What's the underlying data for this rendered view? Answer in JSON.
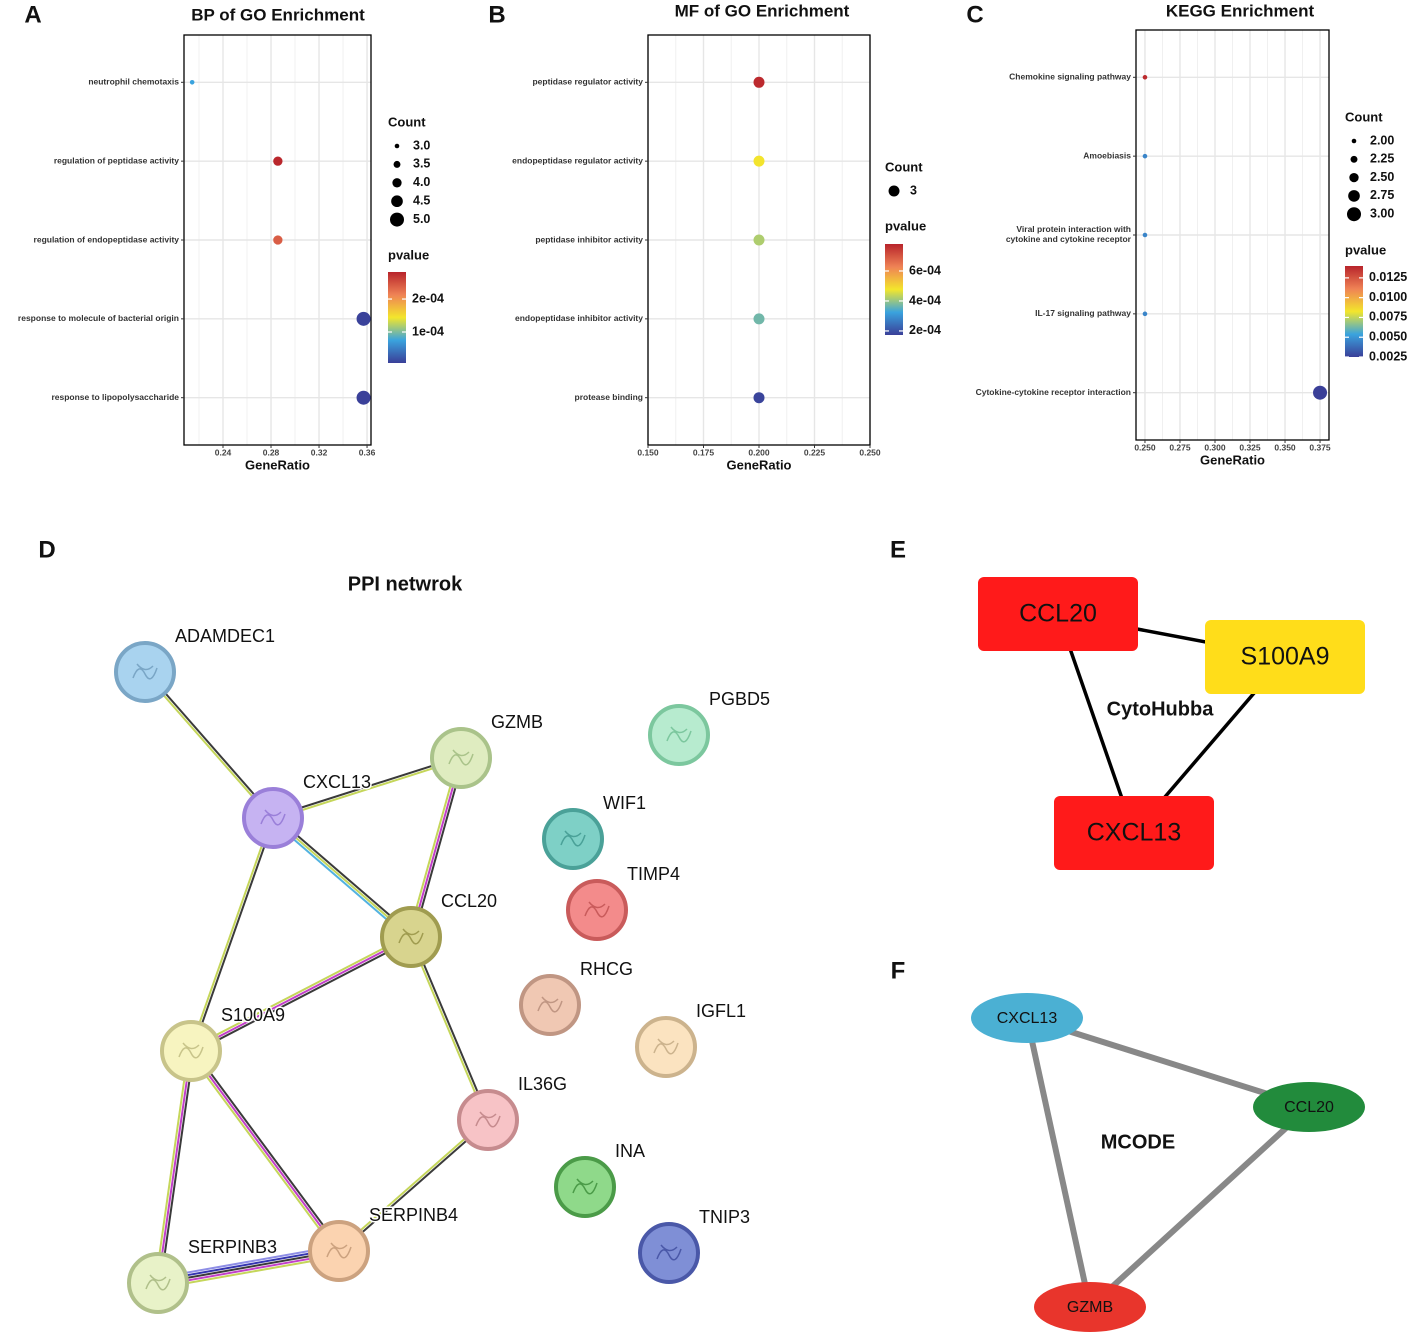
{
  "panel_labels": [
    "A",
    "B",
    "C",
    "D",
    "E",
    "F"
  ],
  "chart_data": [
    {
      "type": "dot",
      "title": "BP of GO Enrichment",
      "xlabel": "GeneRatio",
      "categories": [
        "neutrophil chemotaxis",
        "regulation of peptidase activity",
        "regulation of endopeptidase activity",
        "response to molecule of bacterial origin",
        "response to lipopolysaccharide"
      ],
      "values": [
        0.2143,
        0.2857,
        0.2857,
        0.3571,
        0.3571
      ],
      "counts": [
        3,
        4,
        4,
        5,
        5
      ],
      "pvalues": [
        7.5e-05,
        0.00028,
        0.00024,
        8e-06,
        7e-06
      ],
      "xlim": [
        0.2075,
        0.3633
      ],
      "xticks": [
        0.24,
        0.28,
        0.32,
        0.36
      ],
      "count_title": "Count",
      "count_ticks": [
        {
          "value": 3,
          "label": "3.0"
        },
        3.5,
        {
          "value": 4,
          "label": "4.0"
        },
        4.5,
        {
          "value": 5,
          "label": "5.0"
        }
      ],
      "color_title": "pvalue",
      "color_lim": [
        6e-06,
        0.000282
      ],
      "color_ticks": [
        {
          "value": 0.0001,
          "label": "1e-04"
        },
        {
          "value": 0.0002,
          "label": "2e-04"
        }
      ],
      "palette": [
        "#3a3f98",
        "#3aa3de",
        "#f3e62c",
        "#ef8255",
        "#b8242b"
      ],
      "grid": true
    },
    {
      "type": "dot",
      "title": "MF of GO Enrichment",
      "xlabel": "GeneRatio",
      "categories": [
        "peptidase regulator activity",
        "endopeptidase regulator activity",
        "peptidase inhibitor activity",
        "endopeptidase inhibitor activity",
        "protease binding"
      ],
      "values": [
        0.2,
        0.2,
        0.2,
        0.2,
        0.2
      ],
      "counts": [
        3,
        3,
        3,
        3,
        3
      ],
      "pvalues": [
        0.00077,
        0.00048,
        0.00042,
        0.00037,
        0.00018
      ],
      "xlim": [
        0.15,
        0.25
      ],
      "xticks": [
        {
          "value": 0.15,
          "label": "0.150"
        },
        0.175,
        {
          "value": 0.2,
          "label": "0.200"
        },
        0.225,
        {
          "value": 0.25,
          "label": "0.250"
        }
      ],
      "count_title": "Count",
      "count_ticks": [
        3
      ],
      "color_title": "pvalue",
      "color_lim": [
        0.000173,
        0.00078
      ],
      "color_ticks": [
        {
          "value": 0.0002,
          "label": "2e-04"
        },
        {
          "value": 0.0004,
          "label": "4e-04"
        },
        {
          "value": 0.0006,
          "label": "6e-04"
        }
      ],
      "palette": [
        "#3a3f98",
        "#3aa3de",
        "#f3e62c",
        "#ef8255",
        "#b8242b"
      ],
      "grid": true
    },
    {
      "type": "dot",
      "title": "KEGG Enrichment",
      "xlabel": "GeneRatio",
      "categories": [
        "Chemokine signaling pathway",
        "Amoebiasis",
        "Viral protein interaction with\ncytokine and cytokine receptor",
        "IL-17 signaling pathway",
        "Cytokine-cytokine receptor interaction"
      ],
      "values": [
        0.25,
        0.25,
        0.25,
        0.25,
        0.375
      ],
      "counts": [
        2,
        2,
        2,
        2,
        3
      ],
      "pvalues": [
        0.0138,
        0.0045,
        0.0045,
        0.0045,
        0.0025
      ],
      "xlim": [
        0.2436,
        0.3814
      ],
      "xticks": [
        {
          "value": 0.25,
          "label": "0.250"
        },
        0.275,
        {
          "value": 0.3,
          "label": "0.300"
        },
        0.325,
        {
          "value": 0.35,
          "label": "0.350"
        },
        0.375
      ],
      "count_title": "Count",
      "count_ticks": [
        {
          "value": 2,
          "label": "2.00"
        },
        2.25,
        {
          "value": 2.5,
          "label": "2.50"
        },
        2.75,
        {
          "value": 3,
          "label": "3.00"
        }
      ],
      "color_title": "pvalue",
      "color_lim": [
        0.0025,
        0.014
      ],
      "color_ticks": [
        0.0025,
        {
          "value": 0.005,
          "label": "0.0050"
        },
        0.0075,
        {
          "value": 0.01,
          "label": "0.0100"
        },
        0.0125
      ],
      "palette": [
        "#3a3f98",
        "#3aa3de",
        "#f3e62c",
        "#ef8255",
        "#b8242b"
      ],
      "grid": true
    }
  ],
  "ppi_network": {
    "title": "PPI netwrok",
    "nodes": [
      "ADAMDEC1",
      "CXCL13",
      "GZMB",
      "PGBD5",
      "WIF1",
      "TIMP4",
      "CCL20",
      "RHCG",
      "IGFL1",
      "S100A9",
      "IL36G",
      "INA",
      "TNIP3",
      "SERPINB4",
      "SERPINB3"
    ]
  },
  "cytohubba": {
    "title": "CytoHubba",
    "nodes": [
      "CCL20",
      "S100A9",
      "CXCL13"
    ]
  },
  "mcode": {
    "title": "MCODE",
    "nodes": [
      "CXCL13",
      "CCL20",
      "GZMB"
    ]
  }
}
